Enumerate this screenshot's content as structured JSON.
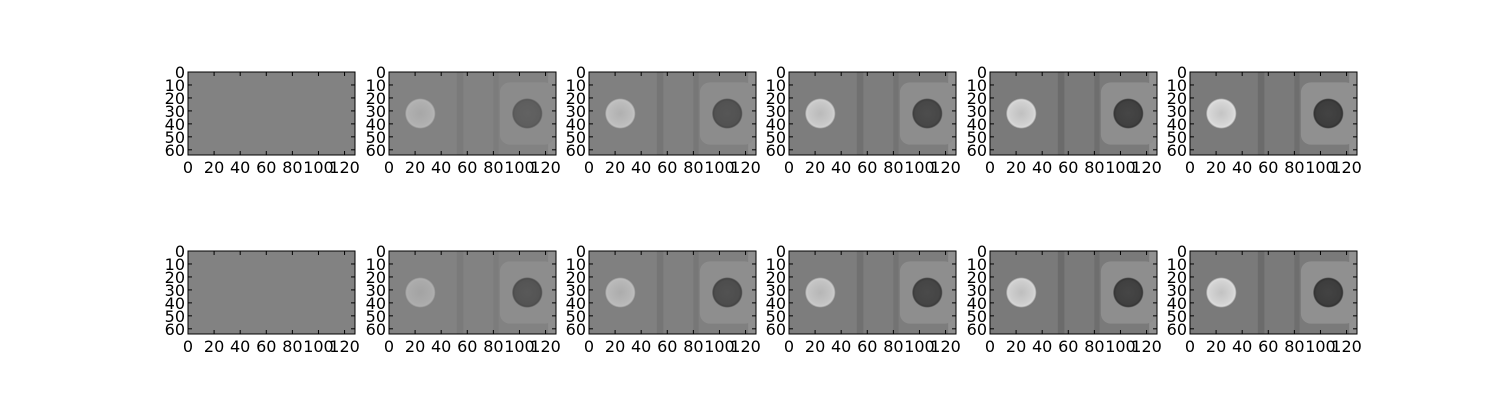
{
  "chart_data": {
    "type": "heatmap",
    "colormap": "gray",
    "grid": false,
    "layout": {
      "rows": 2,
      "cols": 6
    },
    "image_shape": {
      "height": 64,
      "width": 128
    },
    "xlim": [
      0,
      128
    ],
    "ylim": [
      64,
      0
    ],
    "x_ticks": [
      "0",
      "20",
      "40",
      "60",
      "80",
      "100",
      "120"
    ],
    "y_ticks": [
      "0",
      "10",
      "20",
      "30",
      "40",
      "50",
      "60"
    ],
    "panels": [
      {
        "row": 0,
        "col": 0,
        "background": 0.51,
        "band": 0.0,
        "halo": 0.0,
        "bright_spot": 0.0,
        "dark_spot": 0.0
      },
      {
        "row": 0,
        "col": 1,
        "background": 0.51,
        "band": 0.03,
        "halo": 0.1,
        "bright_spot": 0.18,
        "dark_spot": 0.14
      },
      {
        "row": 0,
        "col": 2,
        "background": 0.5,
        "band": 0.04,
        "halo": 0.14,
        "bright_spot": 0.24,
        "dark_spot": 0.18
      },
      {
        "row": 0,
        "col": 3,
        "background": 0.49,
        "band": 0.05,
        "halo": 0.18,
        "bright_spot": 0.3,
        "dark_spot": 0.21
      },
      {
        "row": 0,
        "col": 4,
        "background": 0.48,
        "band": 0.06,
        "halo": 0.22,
        "bright_spot": 0.34,
        "dark_spot": 0.23
      },
      {
        "row": 0,
        "col": 5,
        "background": 0.48,
        "band": 0.06,
        "halo": 0.24,
        "bright_spot": 0.36,
        "dark_spot": 0.24
      },
      {
        "row": 1,
        "col": 0,
        "background": 0.51,
        "band": 0.0,
        "halo": 0.0,
        "bright_spot": 0.0,
        "dark_spot": 0.0
      },
      {
        "row": 1,
        "col": 1,
        "background": 0.51,
        "band": 0.03,
        "halo": 0.12,
        "bright_spot": 0.16,
        "dark_spot": 0.18
      },
      {
        "row": 1,
        "col": 2,
        "background": 0.5,
        "band": 0.04,
        "halo": 0.16,
        "bright_spot": 0.22,
        "dark_spot": 0.2
      },
      {
        "row": 1,
        "col": 3,
        "background": 0.49,
        "band": 0.05,
        "halo": 0.19,
        "bright_spot": 0.28,
        "dark_spot": 0.22
      },
      {
        "row": 1,
        "col": 4,
        "background": 0.48,
        "band": 0.06,
        "halo": 0.22,
        "bright_spot": 0.33,
        "dark_spot": 0.23
      },
      {
        "row": 1,
        "col": 5,
        "background": 0.48,
        "band": 0.06,
        "halo": 0.24,
        "bright_spot": 0.35,
        "dark_spot": 0.24
      }
    ],
    "spot_centers": [
      {
        "x": 24,
        "y": 32
      },
      {
        "x": 106,
        "y": 32
      }
    ],
    "spot_radius": 12
  }
}
